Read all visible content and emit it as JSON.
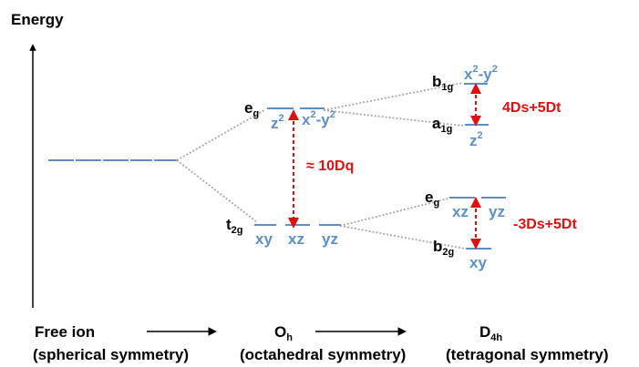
{
  "colors": {
    "orbital": "#5b8fc6",
    "arrow": "#e01010",
    "connector": "#a8a8a8",
    "text": "#000000"
  },
  "axis": {
    "label": "Energy"
  },
  "free_ion": {
    "title": "Free ion",
    "subtitle": "(spherical symmetry)"
  },
  "octahedral": {
    "title_base": "O",
    "title_sub": "h",
    "subtitle": "(octahedral symmetry)",
    "eg": {
      "base": "e",
      "sub": "g",
      "orbitals": [
        {
          "base": "z",
          "sup": "2"
        },
        {
          "base": "x",
          "sup": "2",
          "mid": "-y",
          "sup2": "2"
        }
      ]
    },
    "t2g": {
      "base": "t",
      "sub": "2g",
      "orbitals": [
        "xy",
        "xz",
        "yz"
      ]
    },
    "splitting": "≈ 10Dq"
  },
  "tetragonal": {
    "title_base": "D",
    "title_sub": "4h",
    "subtitle": "(tetragonal symmetry)",
    "b1g": {
      "base": "b",
      "sub": "1g",
      "orbital": {
        "base": "x",
        "sup": "2",
        "mid": "-y",
        "sup2": "2"
      }
    },
    "a1g": {
      "base": "a",
      "sub": "1g",
      "orbital": {
        "base": "z",
        "sup": "2"
      }
    },
    "eg": {
      "base": "e",
      "sub": "g",
      "orbitals": [
        "xz",
        "yz"
      ]
    },
    "b2g": {
      "base": "b",
      "sub": "2g",
      "orbital": "xy"
    },
    "upper_splitting": "4Ds+5Dt",
    "lower_splitting": "-3Ds+5Dt"
  }
}
